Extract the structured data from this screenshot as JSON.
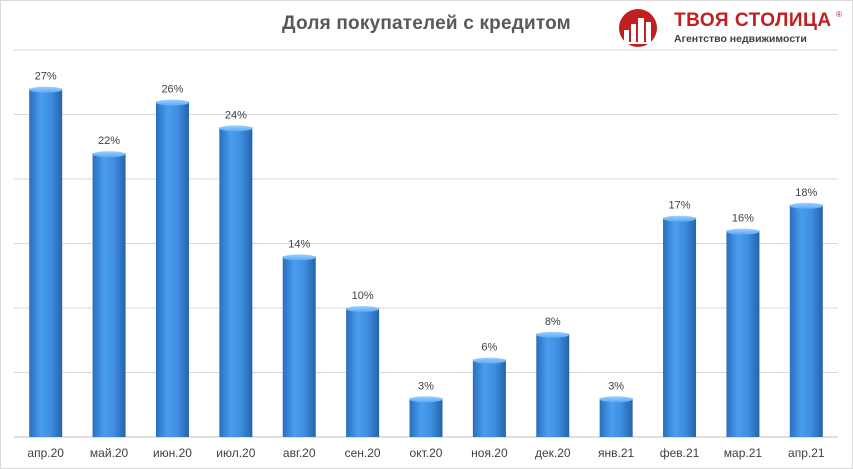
{
  "chart_data": {
    "type": "bar",
    "title": "Доля покупателей с кредитом",
    "categories": [
      "апр.20",
      "май.20",
      "июн.20",
      "июл.20",
      "авг.20",
      "сен.20",
      "окт.20",
      "ноя.20",
      "дек.20",
      "янв.21",
      "фев.21",
      "мар.21",
      "апр.21"
    ],
    "values": [
      27,
      22,
      26,
      24,
      14,
      10,
      3,
      6,
      8,
      3,
      17,
      16,
      18
    ],
    "data_labels": [
      "27%",
      "22%",
      "26%",
      "24%",
      "14%",
      "10%",
      "3%",
      "6%",
      "8%",
      "3%",
      "17%",
      "16%",
      "18%"
    ],
    "ylim": [
      0,
      30
    ],
    "grid": true,
    "bar_color": "#3f8ee0"
  },
  "logo": {
    "name": "ТВОЯ СТОЛИЦА",
    "reg_mark": "®",
    "tagline": "Агентство недвижимости",
    "color": "#c0201e"
  }
}
